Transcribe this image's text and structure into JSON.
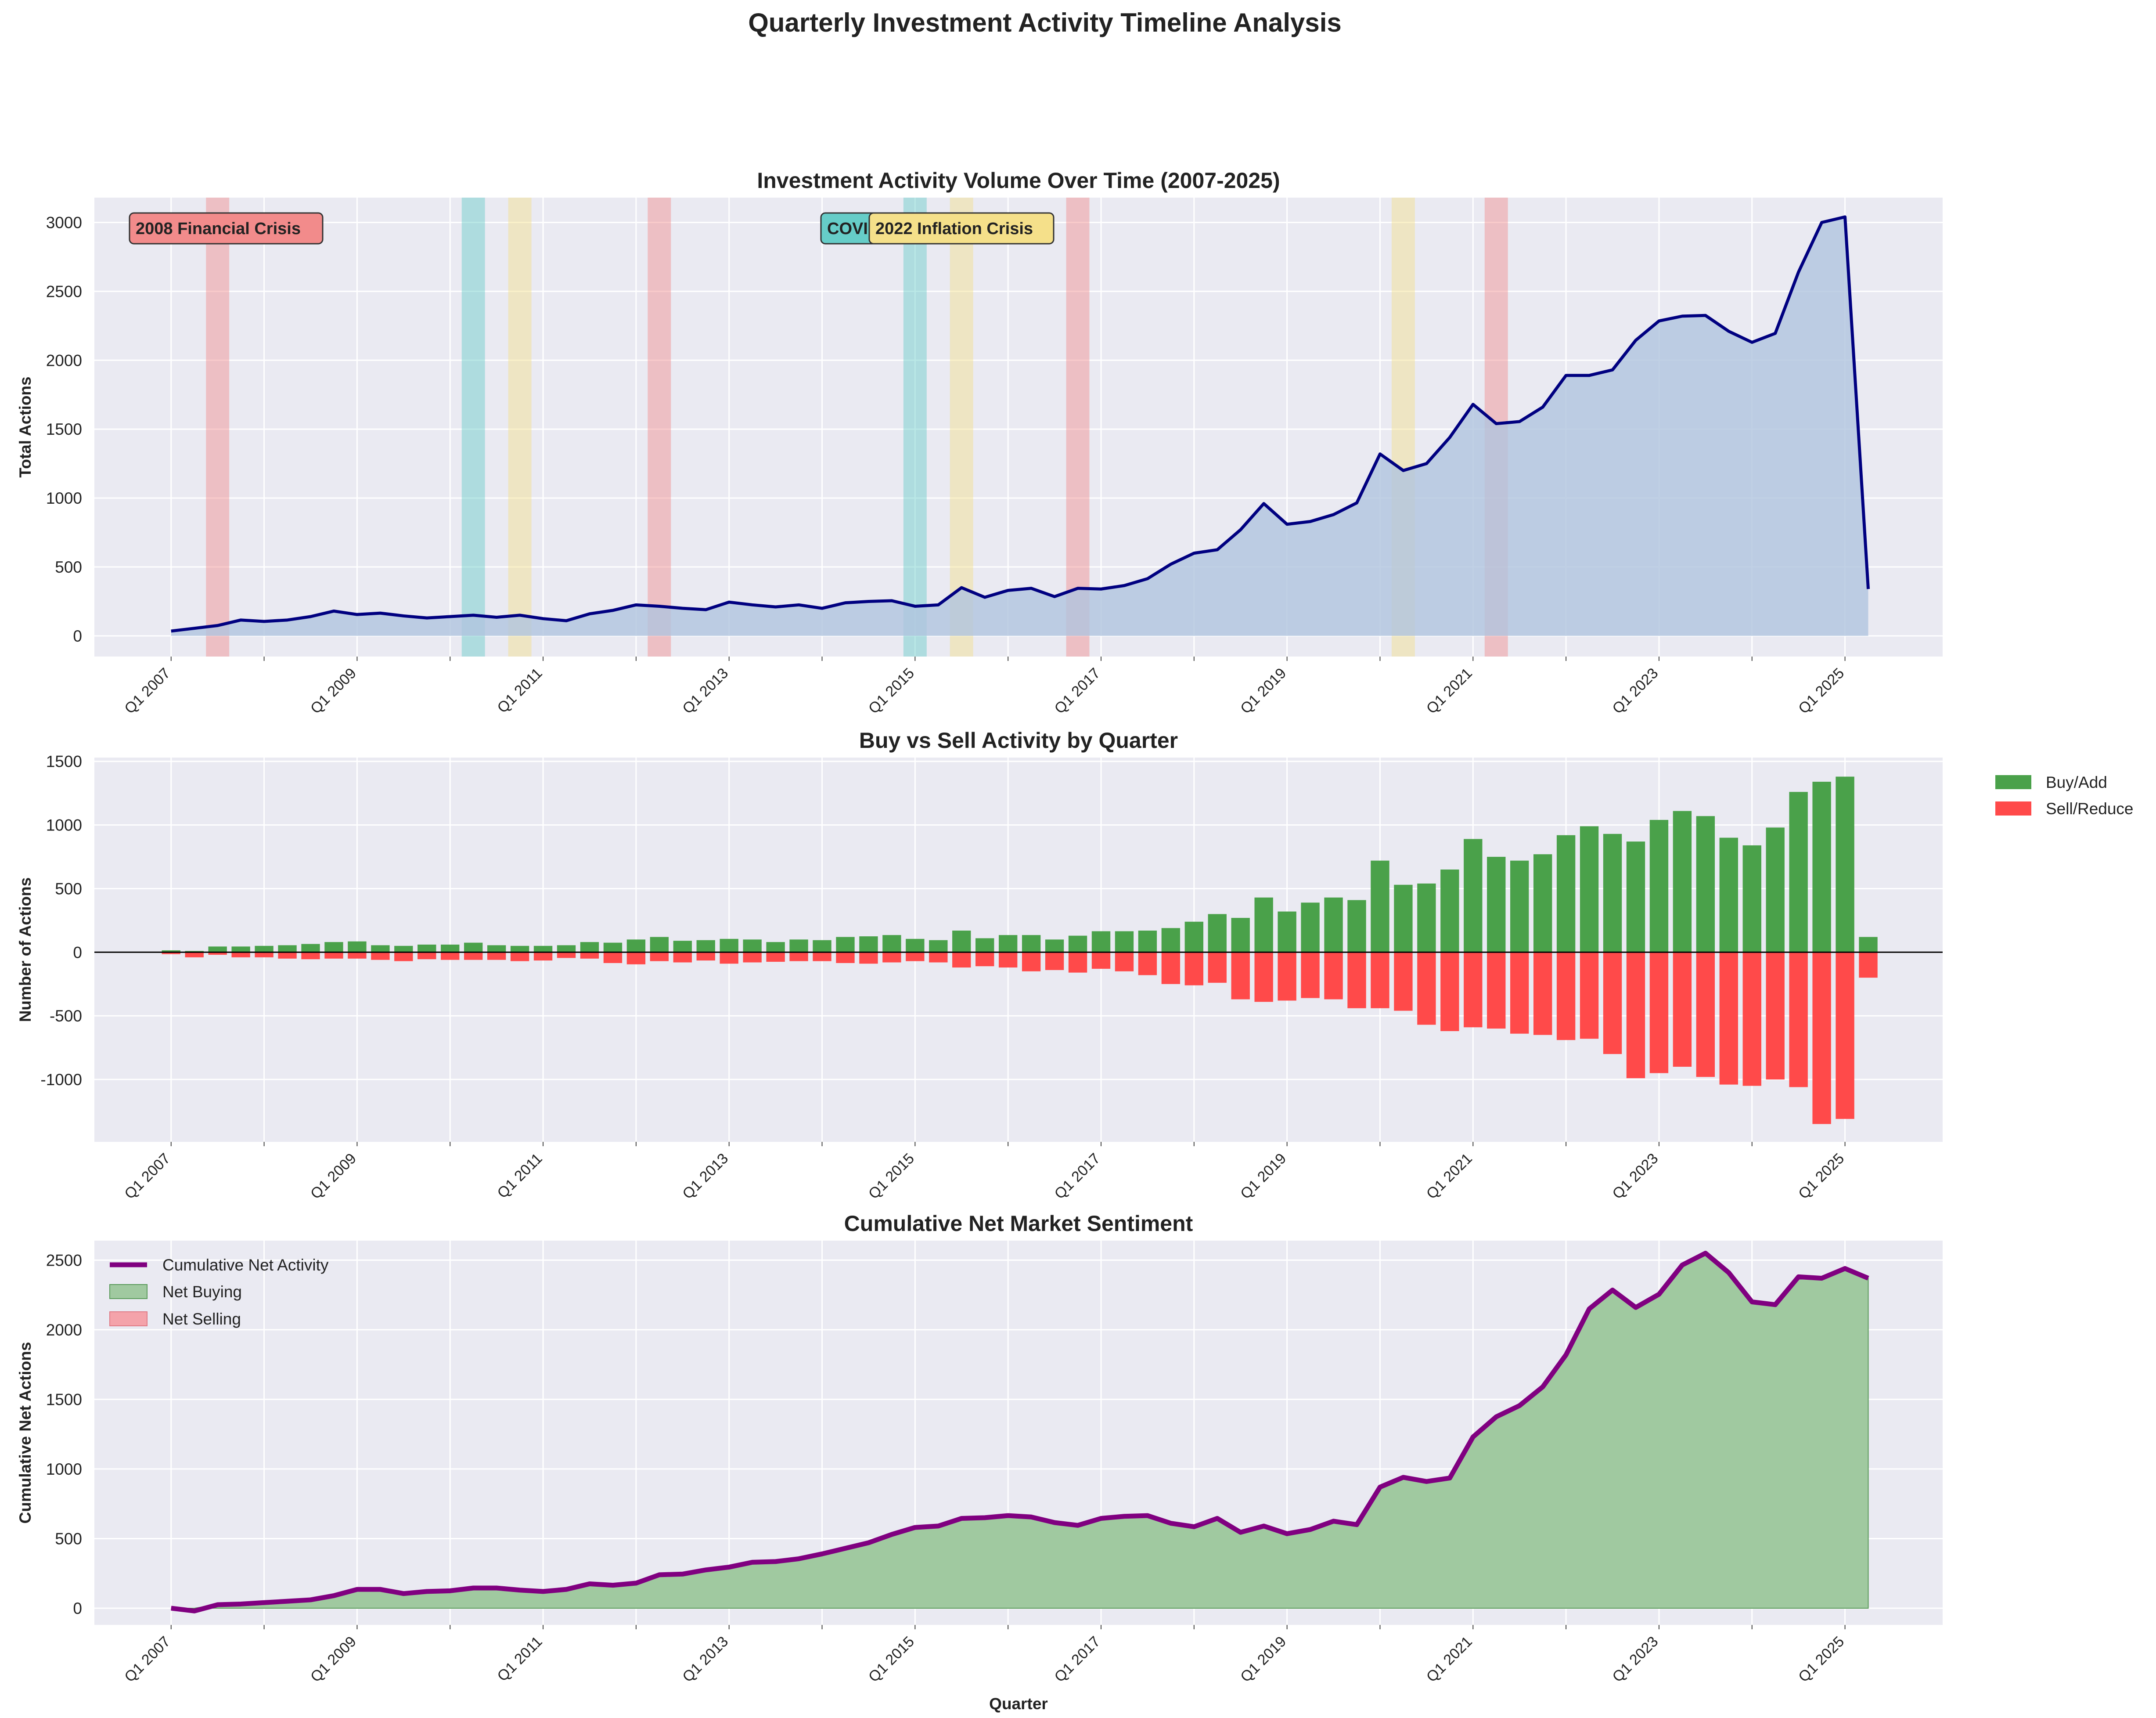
{
  "figure": {
    "title": "Quarterly Investment Activity Timeline Analysis"
  },
  "colors": {
    "panel_bg": "#eaeaf2",
    "total_line": "#000080",
    "total_fill": "#b0c4de",
    "buy": "#4aa14a",
    "sell": "#ff4a4a",
    "cumulative_line": "#800080",
    "net_buying_fill": "#a0c9a0",
    "net_selling_fill": "#f4a3aa",
    "crisis_red": "#f28b8b",
    "covid_teal": "#66cdc8",
    "inflation_yellow": "#f5e08a"
  },
  "chart_data": [
    {
      "type": "area",
      "title": "Investment Activity Volume Over Time (2007-2025)",
      "xlabel": "",
      "ylabel": "Total Actions",
      "x_tick_labels": [
        "Q1 2007",
        "Q1 2009",
        "Q1 2011",
        "Q1 2013",
        "Q1 2015",
        "Q1 2017",
        "Q1 2019",
        "Q1 2021",
        "Q1 2023",
        "Q1 2025"
      ],
      "ylim": [
        -150,
        3180
      ],
      "y_ticks": [
        0,
        500,
        1000,
        1500,
        2000,
        2500,
        3000
      ],
      "grid": true,
      "series": [
        {
          "values": [
            35,
            55,
            75,
            115,
            105,
            115,
            140,
            180,
            155,
            165,
            145,
            130,
            140,
            150,
            135,
            150,
            125,
            110,
            160,
            185,
            225,
            215,
            200,
            190,
            245,
            225,
            210,
            225,
            200,
            240,
            250,
            255,
            215,
            225,
            350,
            280,
            330,
            345,
            285,
            345,
            340,
            365,
            415,
            520,
            600,
            625,
            770,
            960,
            810,
            830,
            880,
            965,
            1320,
            1200,
            1250,
            1440,
            1680,
            1540,
            1555,
            1660,
            1890,
            1890,
            1930,
            2145,
            2285,
            2320,
            2325,
            2210,
            2130,
            2195,
            2640,
            3000,
            3040,
            340
          ]
        }
      ],
      "event_bands": [
        {
          "quarter_index": [
            1.5,
            2.5
          ],
          "color": "crisis_red"
        },
        {
          "quarter_index": [
            12.5,
            13.5
          ],
          "color": "covid_teal"
        },
        {
          "quarter_index": [
            14.5,
            15.5
          ],
          "color": "inflation_yellow"
        },
        {
          "quarter_index": [
            20.5,
            21.5
          ],
          "color": "crisis_red"
        },
        {
          "quarter_index": [
            31.5,
            32.5
          ],
          "color": "covid_teal"
        },
        {
          "quarter_index": [
            33.5,
            34.5
          ],
          "color": "inflation_yellow"
        },
        {
          "quarter_index": [
            38.5,
            39.5
          ],
          "color": "crisis_red"
        },
        {
          "quarter_index": [
            52.5,
            53.5
          ],
          "color": "inflation_yellow"
        },
        {
          "quarter_index": [
            56.5,
            57.5
          ],
          "color": "crisis_red"
        }
      ],
      "annotations": [
        {
          "label": "2008 Financial Crisis",
          "color": "crisis_red"
        },
        {
          "label": "COVID",
          "color": "covid_teal"
        },
        {
          "label": "2022 Inflation Crisis",
          "color": "inflation_yellow"
        }
      ]
    },
    {
      "type": "bar",
      "title": "Buy vs Sell Activity by Quarter",
      "xlabel": "",
      "ylabel": "Number of Actions",
      "x_tick_labels": [
        "Q1 2007",
        "Q1 2009",
        "Q1 2011",
        "Q1 2013",
        "Q1 2015",
        "Q1 2017",
        "Q1 2019",
        "Q1 2021",
        "Q1 2023",
        "Q1 2025"
      ],
      "ylim": [
        -1490,
        1530
      ],
      "y_ticks": [
        -1000,
        -500,
        0,
        500,
        1000,
        1500
      ],
      "grid": true,
      "legend": "outside-right",
      "series": [
        {
          "name": "Buy/Add",
          "values": [
            15,
            10,
            45,
            45,
            50,
            55,
            65,
            80,
            85,
            55,
            50,
            60,
            60,
            75,
            55,
            50,
            50,
            55,
            80,
            75,
            100,
            120,
            90,
            95,
            105,
            100,
            80,
            100,
            95,
            120,
            125,
            135,
            105,
            95,
            170,
            110,
            135,
            135,
            100,
            130,
            165,
            165,
            170,
            190,
            240,
            300,
            270,
            430,
            320,
            390,
            430,
            410,
            720,
            530,
            540,
            650,
            890,
            750,
            720,
            770,
            920,
            990,
            930,
            870,
            1040,
            1110,
            1070,
            900,
            840,
            980,
            1260,
            1340,
            1380,
            120
          ]
        },
        {
          "name": "Sell/Reduce",
          "values": [
            -15,
            -40,
            -20,
            -40,
            -40,
            -50,
            -55,
            -50,
            -50,
            -60,
            -70,
            -55,
            -60,
            -60,
            -60,
            -70,
            -65,
            -45,
            -50,
            -85,
            -95,
            -70,
            -80,
            -65,
            -90,
            -80,
            -75,
            -70,
            -70,
            -85,
            -90,
            -80,
            -70,
            -80,
            -120,
            -110,
            -120,
            -150,
            -140,
            -160,
            -130,
            -150,
            -180,
            -250,
            -260,
            -240,
            -370,
            -390,
            -380,
            -360,
            -370,
            -440,
            -440,
            -460,
            -570,
            -620,
            -590,
            -600,
            -640,
            -650,
            -690,
            -680,
            -800,
            -990,
            -950,
            -900,
            -980,
            -1040,
            -1050,
            -1000,
            -1060,
            -1350,
            -1310,
            -200
          ]
        }
      ]
    },
    {
      "type": "area",
      "title": "Cumulative Net Market Sentiment",
      "xlabel": "Quarter",
      "ylabel": "Cumulative Net Actions",
      "x_tick_labels": [
        "Q1 2007",
        "Q1 2009",
        "Q1 2011",
        "Q1 2013",
        "Q1 2015",
        "Q1 2017",
        "Q1 2019",
        "Q1 2021",
        "Q1 2023",
        "Q1 2025"
      ],
      "ylim": [
        -120,
        2640
      ],
      "y_ticks": [
        0,
        500,
        1000,
        1500,
        2000,
        2500
      ],
      "grid": true,
      "legend": "top-left",
      "series": [
        {
          "name": "Cumulative Net Activity",
          "values": [
            0,
            -20,
            25,
            30,
            40,
            50,
            60,
            90,
            135,
            135,
            105,
            120,
            125,
            145,
            145,
            130,
            120,
            135,
            175,
            165,
            180,
            240,
            245,
            275,
            295,
            330,
            335,
            355,
            390,
            430,
            470,
            530,
            580,
            590,
            645,
            650,
            665,
            655,
            615,
            595,
            645,
            660,
            665,
            610,
            585,
            645,
            545,
            590,
            535,
            565,
            625,
            600,
            870,
            940,
            910,
            935,
            1230,
            1375,
            1455,
            1590,
            1820,
            2150,
            2285,
            2160,
            2255,
            2465,
            2550,
            2410,
            2200,
            2180,
            2380,
            2370,
            2440,
            2370
          ]
        }
      ],
      "fill_labels": [
        "Net Buying",
        "Net Selling"
      ]
    }
  ]
}
